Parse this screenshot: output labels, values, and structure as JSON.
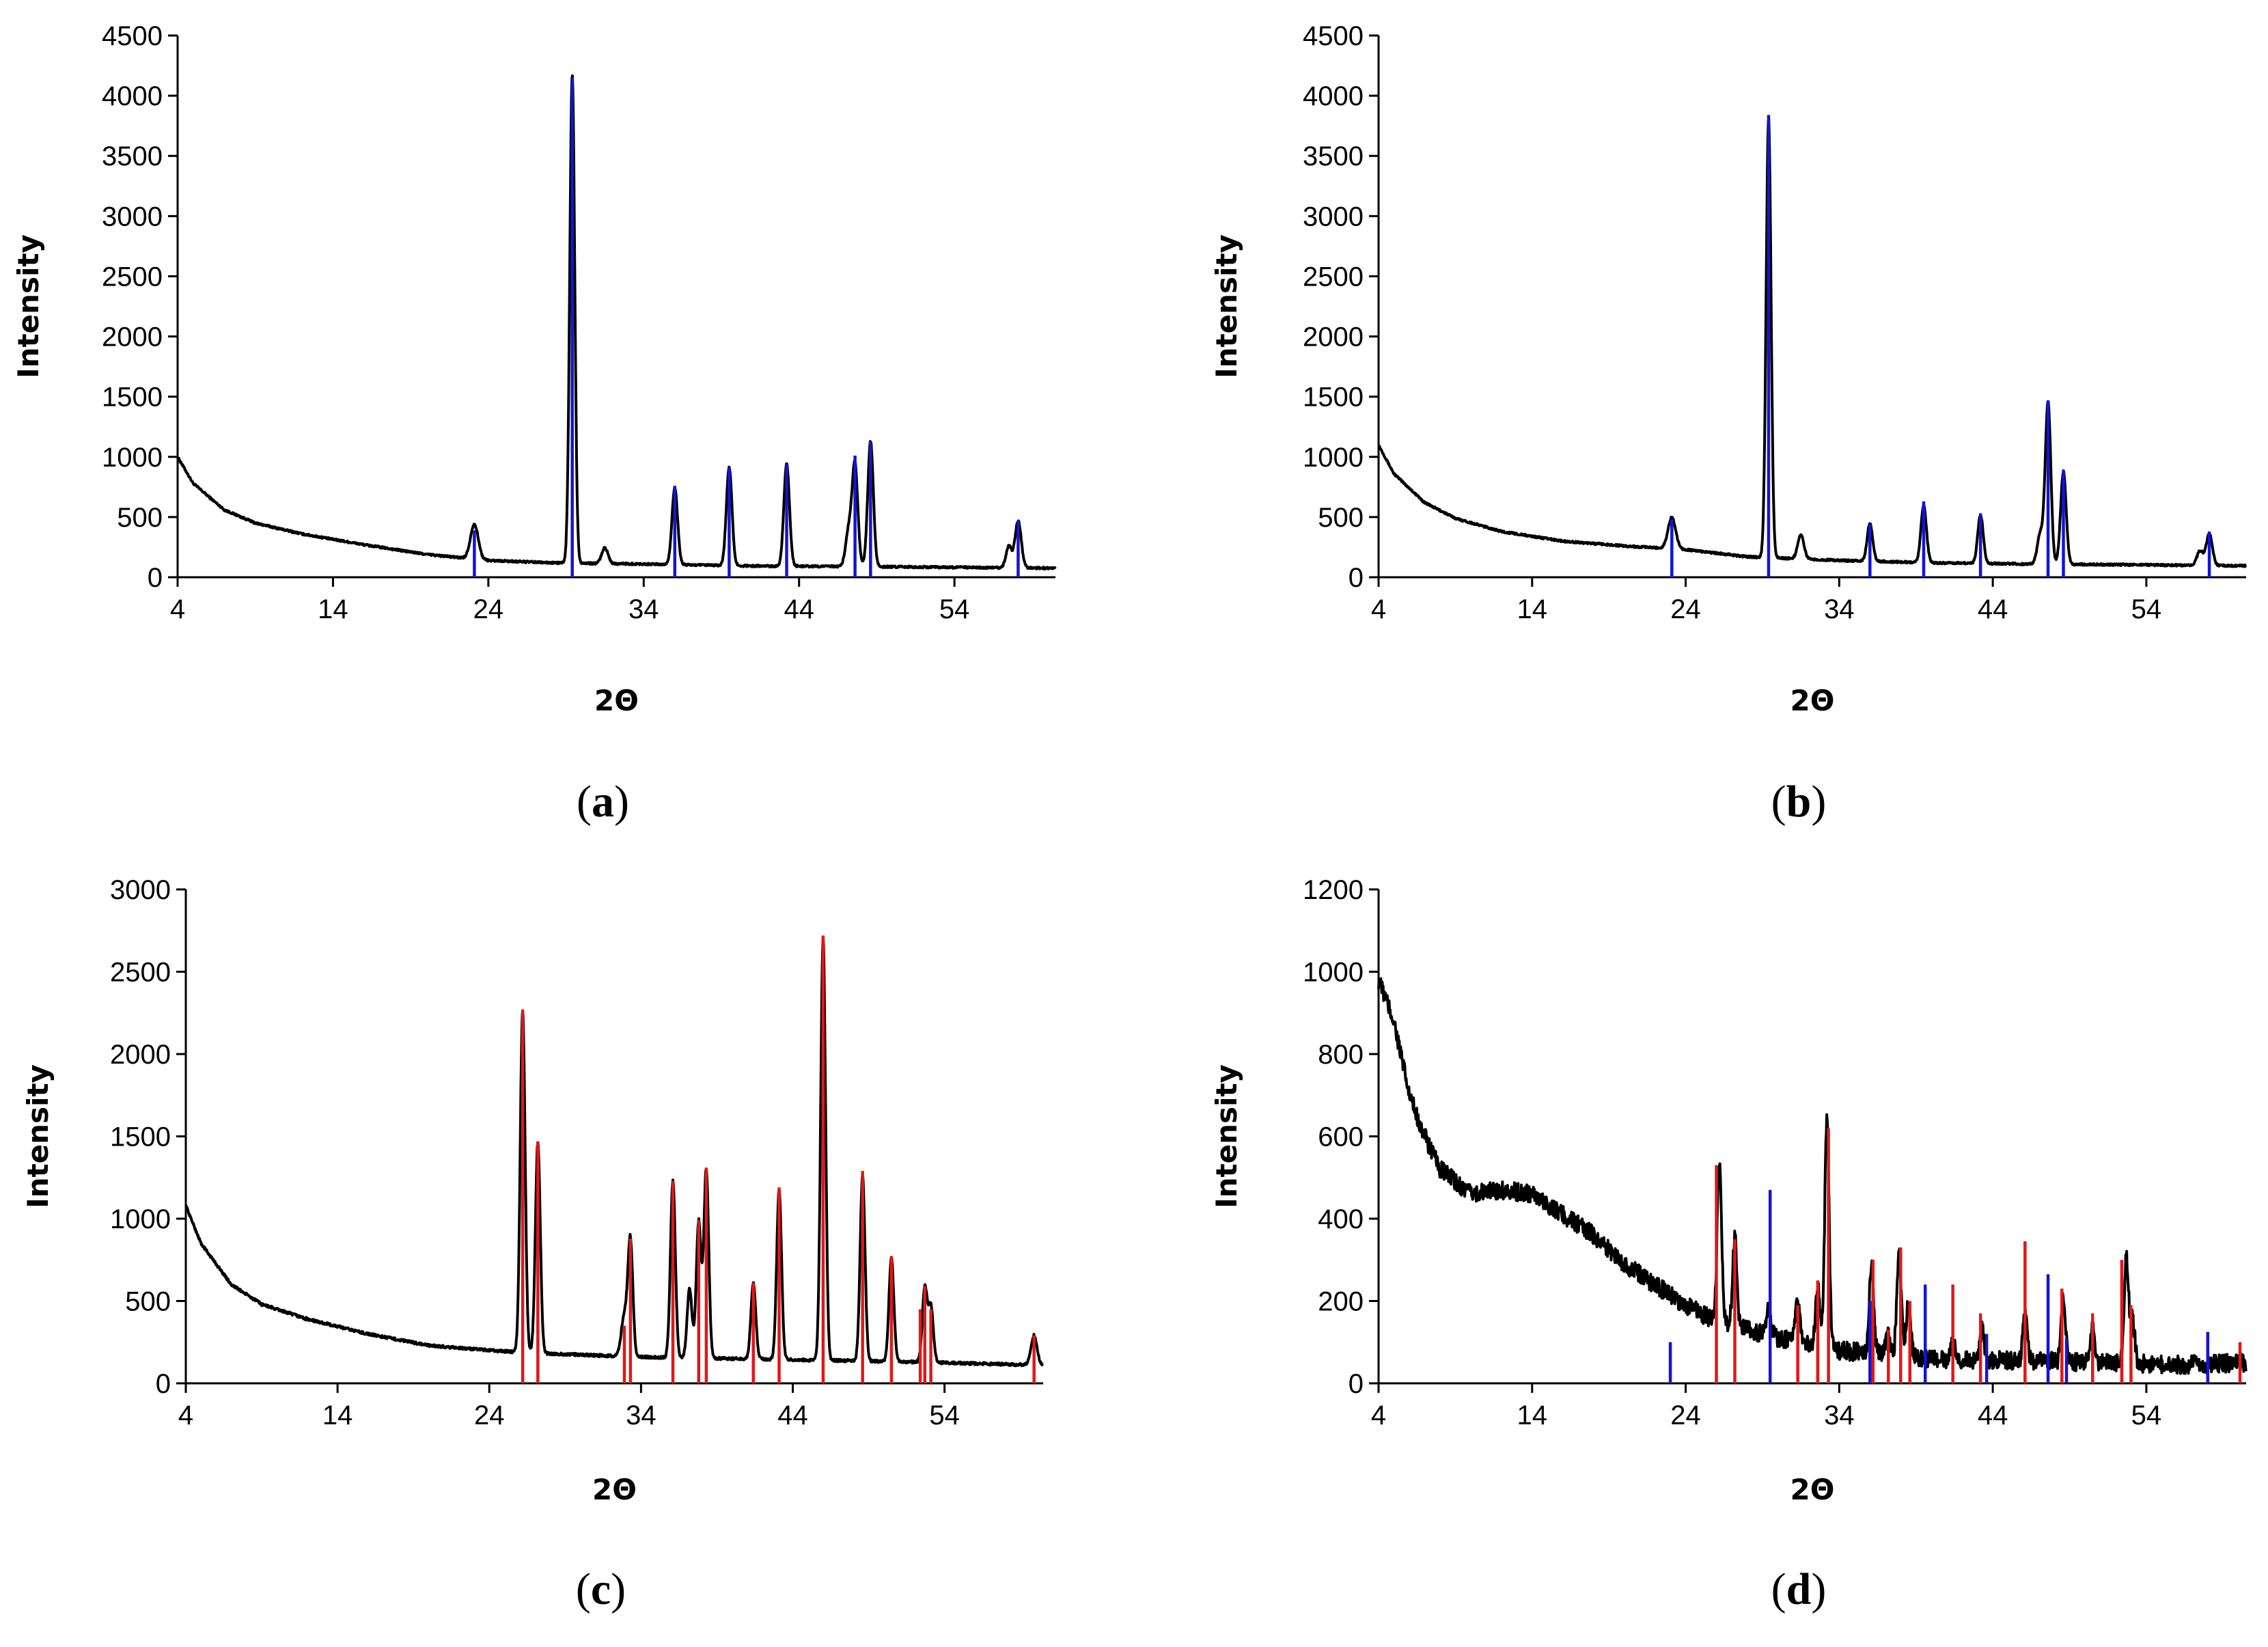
{
  "figure": {
    "x_title": "2Θ",
    "y_title": "Intensity",
    "colors": {
      "pattern": "#000000",
      "phase_blue": "#1414d2",
      "phase_red": "#e01818",
      "axis": "#000000"
    }
  },
  "chart_data": [
    {
      "id": "a",
      "type": "line",
      "panel_label": {
        "open": "(",
        "letter": "a",
        "close": ")"
      },
      "xlabel": "2Θ",
      "ylabel": "Intensity",
      "xlim": [
        4,
        60.5
      ],
      "ylim": [
        0,
        4500
      ],
      "x_ticks": [
        4,
        14,
        24,
        34,
        44,
        54
      ],
      "y_ticks": [
        0,
        500,
        1000,
        1500,
        2000,
        2500,
        3000,
        3500,
        4000,
        4500
      ],
      "pattern": {
        "background": [
          [
            4,
            1000
          ],
          [
            5,
            780
          ],
          [
            7,
            560
          ],
          [
            9,
            450
          ],
          [
            12,
            360
          ],
          [
            16,
            270
          ],
          [
            20,
            190
          ],
          [
            24,
            140
          ],
          [
            28,
            120
          ],
          [
            34,
            110
          ],
          [
            40,
            95
          ],
          [
            46,
            90
          ],
          [
            52,
            85
          ],
          [
            56,
            80
          ],
          [
            60.5,
            75
          ]
        ],
        "peaks": [
          [
            23.1,
            290,
            0.25
          ],
          [
            29.4,
            4060,
            0.16
          ],
          [
            31.5,
            130,
            0.2
          ],
          [
            36.0,
            640,
            0.18
          ],
          [
            39.5,
            820,
            0.18
          ],
          [
            43.2,
            850,
            0.18
          ],
          [
            47.2,
            300,
            0.2
          ],
          [
            47.6,
            830,
            0.18
          ],
          [
            48.6,
            1040,
            0.18
          ],
          [
            57.5,
            180,
            0.18
          ],
          [
            58.1,
            390,
            0.2
          ]
        ]
      },
      "series": [
        {
          "name": "phase-blue",
          "color": "#1414d2",
          "sticks": [
            [
              23.1,
              390
            ],
            [
              29.4,
              4150
            ],
            [
              36.0,
              760
            ],
            [
              39.5,
              910
            ],
            [
              43.2,
              940
            ],
            [
              47.6,
              1010
            ],
            [
              48.6,
              1130
            ],
            [
              58.1,
              470
            ]
          ]
        }
      ]
    },
    {
      "id": "b",
      "type": "line",
      "panel_label": {
        "open": "(",
        "letter": "b",
        "close": ")"
      },
      "xlabel": "2Θ",
      "ylabel": "Intensity",
      "xlim": [
        4,
        60.5
      ],
      "ylim": [
        0,
        4500
      ],
      "x_ticks": [
        4,
        14,
        24,
        34,
        44,
        54
      ],
      "y_ticks": [
        0,
        500,
        1000,
        1500,
        2000,
        2500,
        3000,
        3500,
        4000,
        4500
      ],
      "pattern": {
        "background": [
          [
            4,
            1100
          ],
          [
            5,
            860
          ],
          [
            7,
            620
          ],
          [
            9,
            490
          ],
          [
            12,
            380
          ],
          [
            16,
            300
          ],
          [
            20,
            260
          ],
          [
            24,
            230
          ],
          [
            28,
            170
          ],
          [
            34,
            140
          ],
          [
            40,
            120
          ],
          [
            46,
            110
          ],
          [
            52,
            105
          ],
          [
            56,
            100
          ],
          [
            60.5,
            95
          ]
        ],
        "peaks": [
          [
            23.1,
            260,
            0.25
          ],
          [
            29.4,
            3650,
            0.16
          ],
          [
            31.5,
            200,
            0.2
          ],
          [
            36.0,
            310,
            0.18
          ],
          [
            39.5,
            470,
            0.18
          ],
          [
            43.2,
            400,
            0.18
          ],
          [
            47.1,
            250,
            0.2
          ],
          [
            47.6,
            1340,
            0.18
          ],
          [
            48.6,
            770,
            0.18
          ],
          [
            57.5,
            120,
            0.2
          ],
          [
            58.1,
            260,
            0.2
          ]
        ]
      },
      "series": [
        {
          "name": "phase-blue",
          "color": "#1414d2",
          "sticks": [
            [
              23.1,
              480
            ],
            [
              29.4,
              3840
            ],
            [
              36.0,
              440
            ],
            [
              39.5,
              630
            ],
            [
              43.2,
              530
            ],
            [
              47.6,
              1470
            ],
            [
              48.6,
              890
            ],
            [
              58.1,
              380
            ]
          ]
        }
      ]
    },
    {
      "id": "c",
      "type": "line",
      "panel_label": {
        "open": "(",
        "letter": "c",
        "close": ")"
      },
      "xlabel": "2Θ",
      "ylabel": "Intensity",
      "xlim": [
        4,
        60.5
      ],
      "ylim": [
        0,
        3000
      ],
      "x_ticks": [
        4,
        14,
        24,
        34,
        44,
        54
      ],
      "y_ticks": [
        0,
        500,
        1000,
        1500,
        2000,
        2500,
        3000
      ],
      "pattern": {
        "background": [
          [
            4,
            1080
          ],
          [
            5,
            850
          ],
          [
            7,
            600
          ],
          [
            9,
            480
          ],
          [
            12,
            390
          ],
          [
            16,
            300
          ],
          [
            20,
            230
          ],
          [
            24,
            200
          ],
          [
            28,
            180
          ],
          [
            34,
            160
          ],
          [
            40,
            150
          ],
          [
            46,
            140
          ],
          [
            52,
            130
          ],
          [
            56,
            120
          ],
          [
            60.5,
            110
          ]
        ],
        "peaks": [
          [
            26.2,
            2080,
            0.16
          ],
          [
            27.2,
            1280,
            0.16
          ],
          [
            32.9,
            250,
            0.2
          ],
          [
            33.3,
            700,
            0.16
          ],
          [
            36.1,
            1080,
            0.16
          ],
          [
            37.2,
            420,
            0.16
          ],
          [
            37.8,
            830,
            0.16
          ],
          [
            38.3,
            1150,
            0.16
          ],
          [
            41.4,
            460,
            0.16
          ],
          [
            43.1,
            1030,
            0.16
          ],
          [
            46.0,
            2560,
            0.16
          ],
          [
            48.6,
            1130,
            0.16
          ],
          [
            50.5,
            630,
            0.16
          ],
          [
            52.7,
            450,
            0.16
          ],
          [
            53.1,
            340,
            0.16
          ],
          [
            59.9,
            180,
            0.2
          ]
        ]
      },
      "series": [
        {
          "name": "phase-red",
          "color": "#e01818",
          "sticks": [
            [
              26.2,
              2270
            ],
            [
              27.2,
              1470
            ],
            [
              32.9,
              350
            ],
            [
              33.3,
              880
            ],
            [
              36.1,
              1230
            ],
            [
              37.8,
              990
            ],
            [
              38.3,
              1310
            ],
            [
              41.4,
              610
            ],
            [
              43.1,
              1190
            ],
            [
              46.0,
              2720
            ],
            [
              48.6,
              1290
            ],
            [
              50.5,
              770
            ],
            [
              52.4,
              450
            ],
            [
              52.7,
              590
            ],
            [
              53.1,
              450
            ],
            [
              59.9,
              290
            ]
          ]
        }
      ]
    },
    {
      "id": "d",
      "type": "line",
      "panel_label": {
        "open": "(",
        "letter": "d",
        "close": ")"
      },
      "xlabel": "2Θ",
      "ylabel": "Intensity",
      "xlim": [
        4,
        60.5
      ],
      "ylim": [
        0,
        1200
      ],
      "x_ticks": [
        4,
        14,
        24,
        34,
        44,
        54
      ],
      "y_ticks": [
        0,
        200,
        400,
        600,
        800,
        1000,
        1200
      ],
      "pattern": {
        "background": [
          [
            4,
            980
          ],
          [
            5,
            880
          ],
          [
            6,
            700
          ],
          [
            7,
            600
          ],
          [
            8,
            520
          ],
          [
            10,
            460
          ],
          [
            12,
            470
          ],
          [
            14,
            460
          ],
          [
            16,
            410
          ],
          [
            18,
            360
          ],
          [
            20,
            290
          ],
          [
            22,
            240
          ],
          [
            24,
            190
          ],
          [
            26,
            150
          ],
          [
            30,
            110
          ],
          [
            34,
            80
          ],
          [
            40,
            60
          ],
          [
            46,
            55
          ],
          [
            52,
            50
          ],
          [
            56,
            45
          ],
          [
            60.5,
            50
          ]
        ],
        "peaks": [
          [
            26.2,
            400,
            0.14
          ],
          [
            27.2,
            220,
            0.14
          ],
          [
            29.4,
            60,
            0.16
          ],
          [
            31.3,
            100,
            0.14
          ],
          [
            32.6,
            140,
            0.14
          ],
          [
            33.2,
            560,
            0.14
          ],
          [
            36.1,
            220,
            0.14
          ],
          [
            37.2,
            60,
            0.14
          ],
          [
            37.9,
            270,
            0.14
          ],
          [
            38.5,
            130,
            0.14
          ],
          [
            41.4,
            40,
            0.14
          ],
          [
            43.3,
            70,
            0.14
          ],
          [
            46.1,
            110,
            0.14
          ],
          [
            48.6,
            160,
            0.14
          ],
          [
            50.5,
            80,
            0.14
          ],
          [
            52.7,
            260,
            0.14
          ],
          [
            53.1,
            110,
            0.14
          ]
        ],
        "noise": 22
      },
      "series": [
        {
          "name": "phase-red",
          "color": "#e01818",
          "sticks": [
            [
              26.0,
              530
            ],
            [
              27.2,
              350
            ],
            [
              31.3,
              190
            ],
            [
              32.6,
              250
            ],
            [
              33.3,
              620
            ],
            [
              36.2,
              300
            ],
            [
              37.2,
              130
            ],
            [
              38.0,
              330
            ],
            [
              38.6,
              200
            ],
            [
              41.4,
              240
            ],
            [
              43.2,
              170
            ],
            [
              46.1,
              345
            ],
            [
              48.5,
              230
            ],
            [
              50.5,
              170
            ],
            [
              52.4,
              300
            ],
            [
              53.0,
              190
            ],
            [
              60.1,
              100
            ]
          ]
        },
        {
          "name": "phase-blue",
          "color": "#1414d2",
          "sticks": [
            [
              23.0,
              100
            ],
            [
              29.5,
              470
            ],
            [
              36.0,
              200
            ],
            [
              39.6,
              240
            ],
            [
              43.6,
              120
            ],
            [
              47.6,
              265
            ],
            [
              48.8,
              110
            ],
            [
              58.0,
              125
            ]
          ]
        }
      ]
    }
  ]
}
